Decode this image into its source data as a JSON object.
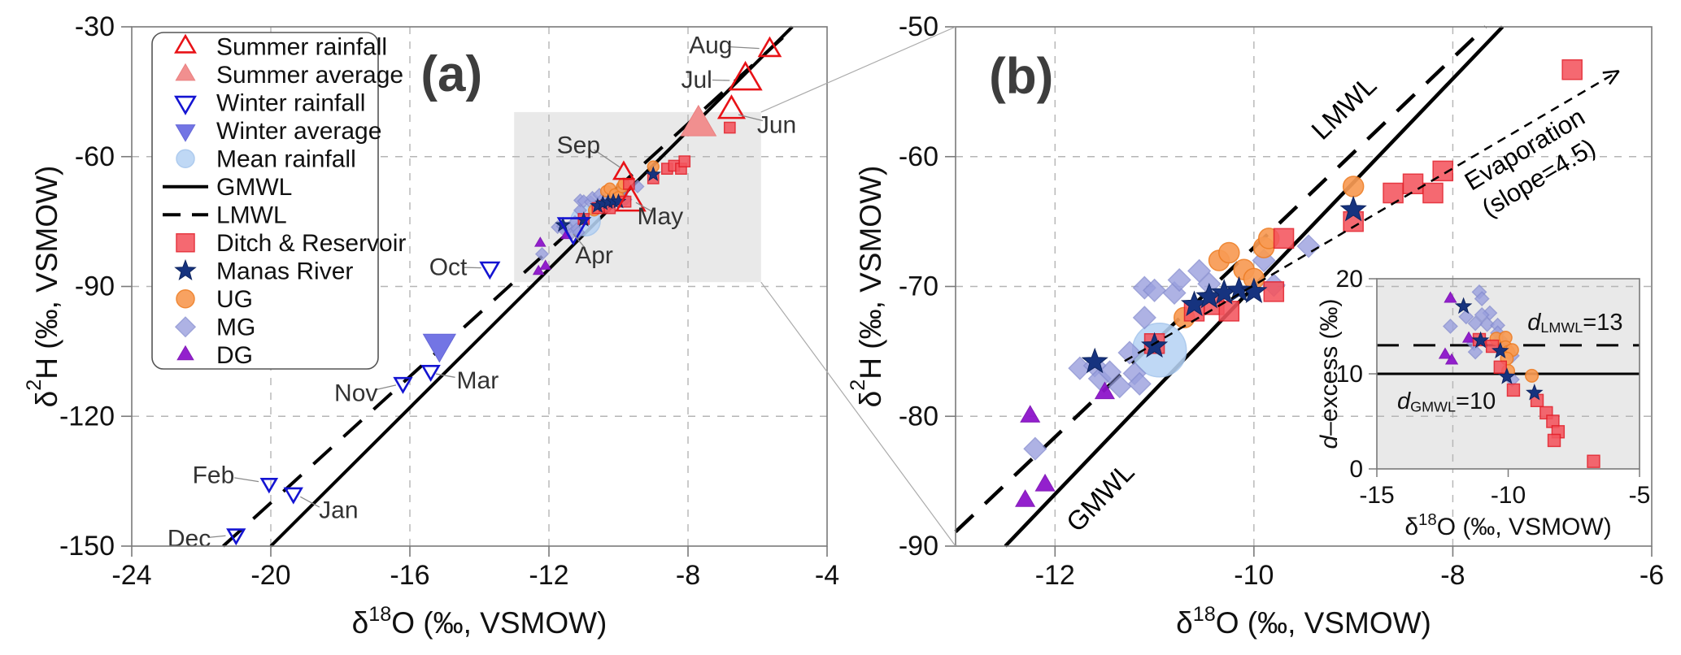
{
  "figure": {
    "description": "Dual-panel stable isotope scatter plot with inset d-excess plot"
  },
  "legend": {
    "items": [
      {
        "label": "Summer rainfall",
        "key": "summer_rainfall"
      },
      {
        "label": "Summer average",
        "key": "summer_average"
      },
      {
        "label": "Winter rainfall",
        "key": "winter_rainfall"
      },
      {
        "label": "Winter average",
        "key": "winter_average"
      },
      {
        "label": "Mean rainfall",
        "key": "mean_rainfall"
      },
      {
        "label": "GMWL",
        "key": "line_solid"
      },
      {
        "label": "LMWL",
        "key": "line_dashed"
      },
      {
        "label": "Ditch & Reservoir",
        "key": "ditch_reservoir"
      },
      {
        "label": "Manas River",
        "key": "manas_river"
      },
      {
        "label": "UG",
        "key": "ug"
      },
      {
        "label": "MG",
        "key": "mg"
      },
      {
        "label": "DG",
        "key": "dg"
      }
    ]
  },
  "chart_data": {
    "type": "scatter",
    "markers": {
      "summer_rainfall": {
        "shape": "triangle-up",
        "fill": "none",
        "stroke": "#e81217",
        "sw": 3,
        "r": 14,
        "opacity": 1
      },
      "summer_average": {
        "shape": "triangle-up",
        "fill": "#f18f8f",
        "stroke": "#ea8181",
        "sw": 1,
        "r": 24,
        "opacity": 1
      },
      "winter_rainfall": {
        "shape": "triangle-down",
        "fill": "none",
        "stroke": "#1414d2",
        "sw": 3,
        "r": 14,
        "opacity": 1
      },
      "winter_average": {
        "shape": "triangle-down",
        "fill": "#7375e4",
        "stroke": "#6567d8",
        "sw": 1,
        "r": 22,
        "opacity": 1
      },
      "mean_rainfall": {
        "shape": "circle",
        "fill": "#b7d3f4",
        "stroke": "#a3c4ec",
        "sw": 1.5,
        "r": 33,
        "opacity": 0.88
      },
      "ditch_reservoir": {
        "shape": "square",
        "fill": "#f4555e",
        "stroke": "#e31e28",
        "sw": 1.5,
        "r": 12,
        "opacity": 0.88
      },
      "manas_river": {
        "shape": "star",
        "fill": "#16337f",
        "stroke": "#0f2560",
        "sw": 1,
        "r": 16,
        "opacity": 1
      },
      "ug": {
        "shape": "circle",
        "fill": "#f89b54",
        "stroke": "#ee7e26",
        "sw": 1.5,
        "r": 12.5,
        "opacity": 0.92
      },
      "mg": {
        "shape": "diamond",
        "fill": "#9aa0de",
        "stroke": "#868dd0",
        "sw": 1.5,
        "r": 13.5,
        "opacity": 0.8
      },
      "dg": {
        "shape": "triangle-up",
        "fill": "#8e15cb",
        "stroke": "#7d12b4",
        "sw": 1,
        "r": 13,
        "opacity": 0.95
      },
      "line_solid": {
        "shape": "line",
        "stroke": "#000000",
        "sw": 4,
        "dash": null
      },
      "line_dashed": {
        "shape": "line",
        "stroke": "#000000",
        "sw": 4,
        "dash": "22,14"
      }
    },
    "water_series": {
      "mean_rainfall": [
        [
          -10.95,
          -74.9
        ]
      ],
      "mg": [
        [
          -12.2,
          -82.5
        ],
        [
          -11.75,
          -76.3
        ],
        [
          -11.6,
          -76.1
        ],
        [
          -11.55,
          -77.1
        ],
        [
          -11.45,
          -76.6
        ],
        [
          -11.35,
          -77.7
        ],
        [
          -11.25,
          -75.1
        ],
        [
          -11.2,
          -76.7
        ],
        [
          -11.15,
          -77.5
        ],
        [
          -11.1,
          -72.4
        ],
        [
          -11.1,
          -70.1
        ],
        [
          -11.0,
          -70.3
        ],
        [
          -10.8,
          -70.5
        ],
        [
          -10.75,
          -69.5
        ],
        [
          -10.55,
          -68.8
        ],
        [
          -10.45,
          -69.8
        ],
        [
          -9.9,
          -68.0
        ],
        [
          -9.8,
          -69.9
        ],
        [
          -9.45,
          -66.9
        ]
      ],
      "dg": [
        [
          -12.3,
          -86.5
        ],
        [
          -12.1,
          -85.3
        ],
        [
          -12.25,
          -80.0
        ],
        [
          -11.5,
          -78.2
        ]
      ],
      "ug": [
        [
          -10.7,
          -72.4
        ],
        [
          -10.35,
          -68.0
        ],
        [
          -10.25,
          -67.4
        ],
        [
          -10.1,
          -68.7
        ],
        [
          -10.0,
          -69.4
        ],
        [
          -9.9,
          -67.0
        ],
        [
          -9.85,
          -66.3
        ],
        [
          -9.0,
          -62.3
        ]
      ],
      "ditch_reservoir": [
        [
          -11.0,
          -74.4
        ],
        [
          -10.6,
          -71.9
        ],
        [
          -10.4,
          -71.4
        ],
        [
          -10.25,
          -71.9
        ],
        [
          -9.8,
          -70.4
        ],
        [
          -9.7,
          -66.3
        ],
        [
          -9.0,
          -65.0
        ],
        [
          -8.6,
          -62.8
        ],
        [
          -8.4,
          -62.1
        ],
        [
          -8.2,
          -62.8
        ],
        [
          -8.1,
          -61.1
        ],
        [
          -6.8,
          -53.3
        ]
      ],
      "manas_river": [
        [
          -11.6,
          -75.8
        ],
        [
          -11.0,
          -74.6
        ],
        [
          -10.6,
          -71.4
        ],
        [
          -10.45,
          -70.8
        ],
        [
          -10.3,
          -70.5
        ],
        [
          -10.15,
          -70.3
        ],
        [
          -10.0,
          -70.4
        ],
        [
          -9.0,
          -64.1
        ]
      ]
    },
    "rainfall": {
      "summer_rainfall": [
        {
          "x": -9.65,
          "y": -70.5,
          "r": 19
        },
        {
          "x": -9.85,
          "y": -63.8,
          "r": 13
        },
        {
          "x": -6.75,
          "y": -49.3,
          "r": 17
        },
        {
          "x": -6.35,
          "y": -42.3,
          "r": 21
        },
        {
          "x": -5.65,
          "y": -35.3,
          "r": 14
        }
      ],
      "winter_rainfall": [
        {
          "x": -13.7,
          "y": -85.7,
          "r": 12
        },
        {
          "x": -16.2,
          "y": -112.3,
          "r": 11
        },
        {
          "x": -21.0,
          "y": -147.3,
          "r": 11
        },
        {
          "x": -19.35,
          "y": -137.8,
          "r": 11
        },
        {
          "x": -20.05,
          "y": -135.5,
          "r": 10
        },
        {
          "x": -15.4,
          "y": -109.5,
          "r": 11
        },
        {
          "x": -11.3,
          "y": -76.3,
          "r": 20
        }
      ],
      "summer_average": [
        {
          "x": -7.7,
          "y": -52.7,
          "r": 24
        }
      ],
      "winter_average": [
        {
          "x": -15.15,
          "y": -103.3,
          "r": 22
        }
      ]
    },
    "panels": [
      {
        "id": "a",
        "title": {
          "label": "(a)",
          "x": -14.8,
          "y": -40.9
        },
        "xlim": [
          -24,
          -4
        ],
        "ylim": [
          -150,
          -30
        ],
        "xticks": [
          -24,
          -20,
          -16,
          -12,
          -8,
          -4
        ],
        "yticks": [
          -150,
          -120,
          -90,
          -60,
          -30
        ],
        "xlabel": "δ¹⁸O (‰, VSMOW)",
        "ylabel": "δ²H (‰, VSMOW)",
        "xlabel_parts": [
          {
            "t": "δ",
            "m": 0
          },
          {
            "t": "18",
            "m": 1
          },
          {
            "t": "O (‰, VSMOW)",
            "m": 0
          }
        ],
        "ylabel_parts": [
          {
            "t": "δ",
            "m": 0
          },
          {
            "t": "2",
            "m": 1
          },
          {
            "t": "H (‰, VSMOW)",
            "m": 0
          }
        ],
        "marker_scale": 0.55,
        "show_months": true,
        "zoom_box": {
          "x1": -13.0,
          "x2": -5.9,
          "y1": -89.0,
          "y2": -49.7
        },
        "lines": [
          {
            "name": "GMWL",
            "slope": 8,
            "intercept": 10,
            "dash": null,
            "width": 4
          },
          {
            "name": "LMWL",
            "slope": 7.3,
            "intercept": 6,
            "dash": "30,20",
            "width": 4
          }
        ],
        "annotations": [
          {
            "text": "Aug",
            "tx": -7.35,
            "ty": -34.2,
            "line": [
              -6.85,
              -34.6,
              -5.95,
              -35.0
            ]
          },
          {
            "text": "Jul",
            "tx": -7.75,
            "ty": -42.2,
            "line": [
              -7.3,
              -42.3,
              -6.8,
              -42.4
            ]
          },
          {
            "text": "Jun",
            "tx": -5.45,
            "ty": -52.6,
            "line": [
              -5.85,
              -51.7,
              -6.55,
              -50.3
            ]
          },
          {
            "text": "Sep",
            "tx": -11.15,
            "ty": -57.3,
            "line": [
              -10.7,
              -58.4,
              -9.95,
              -62.5
            ]
          },
          {
            "text": "May",
            "tx": -8.8,
            "ty": -73.8,
            "line": [
              -9.05,
              -72.6,
              -9.5,
              -70.6
            ]
          },
          {
            "text": "Apr",
            "tx": -10.7,
            "ty": -82.8,
            "line": [
              -10.95,
              -81.2,
              -11.3,
              -77.9
            ]
          },
          {
            "text": "Oct",
            "tx": -14.9,
            "ty": -85.5,
            "line": [
              -14.45,
              -85.6,
              -13.95,
              -85.7
            ]
          },
          {
            "text": "Nov",
            "tx": -17.55,
            "ty": -114.6,
            "line": [
              -17.0,
              -113.9,
              -16.4,
              -112.8
            ]
          },
          {
            "text": "Mar",
            "tx": -14.05,
            "ty": -111.7,
            "line": [
              -14.7,
              -111.0,
              -15.25,
              -110.2
            ]
          },
          {
            "text": "Dec",
            "tx": -22.35,
            "ty": -148.2,
            "line": [
              -21.8,
              -148.0,
              -21.3,
              -147.6
            ]
          },
          {
            "text": "Feb",
            "tx": -21.65,
            "ty": -133.6,
            "line": [
              -21.05,
              -134.2,
              -20.35,
              -135.1
            ]
          },
          {
            "text": "Jan",
            "tx": -18.05,
            "ty": -141.6,
            "line": [
              -18.6,
              -141.0,
              -19.15,
              -138.6
            ]
          }
        ]
      },
      {
        "id": "b",
        "title": {
          "label": "(b)",
          "x": -12.34,
          "y": -53.8
        },
        "xlim": [
          -13,
          -6
        ],
        "ylim": [
          -90,
          -50
        ],
        "xticks": [
          -12,
          -10,
          -8,
          -6
        ],
        "yticks": [
          -90,
          -80,
          -70,
          -60,
          -50
        ],
        "xlabel": "δ¹⁸O (‰, VSMOW)",
        "ylabel": "δ²H (‰, VSMOW)",
        "xlabel_parts": [
          {
            "t": "δ",
            "m": 0
          },
          {
            "t": "18",
            "m": 1
          },
          {
            "t": "O (‰, VSMOW)",
            "m": 0
          }
        ],
        "ylabel_parts": [
          {
            "t": "δ",
            "m": 0
          },
          {
            "t": "2",
            "m": 1
          },
          {
            "t": "H (‰, VSMOW)",
            "m": 0
          }
        ],
        "marker_scale": 1,
        "show_months": false,
        "lines": [
          {
            "name": "GMWL",
            "slope": 8,
            "intercept": 10,
            "dash": null,
            "width": 4.5
          },
          {
            "name": "LMWL",
            "slope": 7.3,
            "intercept": 6,
            "dash": "30,20",
            "width": 4.5
          }
        ],
        "evap_line": {
          "x1": -11.3,
          "y1": -75.75,
          "x2": -6.33,
          "y2": -53.4,
          "dash": "11,8",
          "width": 2.5
        },
        "rot_labels": [
          {
            "text": "LMWL",
            "x": -9.1,
            "y": -56.2,
            "rot": -44,
            "size": 33
          },
          {
            "text": "GMWL",
            "x": -11.55,
            "y": -86.2,
            "rot": -46,
            "size": 33
          },
          {
            "text": "Evaporation",
            "x": -7.28,
            "y": -59.4,
            "rot": -31,
            "size": 31
          },
          {
            "text": "(slope=4.5)",
            "x": -7.14,
            "y": -61.6,
            "rot": -31,
            "size": 31
          }
        ]
      }
    ],
    "inset": {
      "xlim": [
        -15,
        -5
      ],
      "ylim": [
        0,
        20
      ],
      "xticks": [
        -15,
        -10,
        -5
      ],
      "yticks": [
        0,
        10,
        20
      ],
      "xlabel": "δ¹⁸O (‰, VSMOW)",
      "ylabel": "d–excess (‰)",
      "xlabel_parts": [
        {
          "t": "δ",
          "m": 0
        },
        {
          "t": "18",
          "m": 1
        },
        {
          "t": "O (‰, VSMOW)",
          "m": 0
        }
      ],
      "ylabel_parts": [
        {
          "t": "d",
          "m": 3
        },
        {
          "t": "–excess (‰)",
          "m": 0
        }
      ],
      "bg": "#e9e9e9",
      "marker_scale": 0.62,
      "hlines": [
        {
          "y": 13,
          "dashed": true,
          "label_parts": [
            {
              "t": "d",
              "m": 3
            },
            {
              "t": "LMWL",
              "m": 2
            },
            {
              "t": "=13",
              "m": 0
            }
          ],
          "lx": -7.45,
          "ly": 15.4
        },
        {
          "y": 10,
          "dashed": false,
          "label_parts": [
            {
              "t": "d",
              "m": 3
            },
            {
              "t": "GMWL",
              "m": 2
            },
            {
              "t": "=10",
              "m": 0
            }
          ],
          "lx": -12.35,
          "ly": 7.1
        }
      ],
      "series": {
        "mg": [
          [
            -11.1,
            18.6
          ],
          [
            -11.0,
            17.9
          ],
          [
            -10.7,
            16.4
          ],
          [
            -11.0,
            16.2
          ],
          [
            -11.6,
            16.0
          ],
          [
            -11.25,
            15.3
          ],
          [
            -10.8,
            15.2
          ],
          [
            -10.4,
            15.1
          ],
          [
            -12.2,
            15.0
          ],
          [
            -10.4,
            14.3
          ],
          [
            -10.3,
            13.6
          ],
          [
            -10.2,
            12.9
          ],
          [
            -11.3,
            13.2
          ],
          [
            -11.25,
            12.3
          ],
          [
            -9.85,
            11.9
          ],
          [
            -9.85,
            9.4
          ]
        ],
        "dg": [
          [
            -12.2,
            17.9
          ],
          [
            -12.4,
            12.0
          ],
          [
            -12.15,
            11.4
          ],
          [
            -11.5,
            13.7
          ]
        ],
        "manas_river": [
          [
            -11.7,
            17.1
          ],
          [
            -11.05,
            13.5
          ],
          [
            -10.3,
            12.4
          ],
          [
            -10.05,
            9.7
          ],
          [
            -9.0,
            8.0
          ]
        ],
        "ug": [
          [
            -10.45,
            13.7
          ],
          [
            -10.1,
            13.8
          ],
          [
            -10.1,
            12.8
          ],
          [
            -10.0,
            12.3
          ],
          [
            -9.85,
            12.5
          ],
          [
            -10.05,
            11.6
          ],
          [
            -10.0,
            10.3
          ],
          [
            -9.1,
            9.8
          ]
        ],
        "ditch_reservoir": [
          [
            -11.1,
            13.6
          ],
          [
            -10.6,
            12.9
          ],
          [
            -10.3,
            10.7
          ],
          [
            -9.8,
            8.3
          ],
          [
            -8.9,
            7.2
          ],
          [
            -8.55,
            5.9
          ],
          [
            -8.3,
            5.0
          ],
          [
            -8.1,
            3.9
          ],
          [
            -8.25,
            3.0
          ],
          [
            -6.75,
            0.8
          ]
        ]
      }
    },
    "style": {
      "grid_color": "#b5b5b5",
      "spine_color": "#7a7a7a",
      "tick_label_color": "#111111",
      "annotation_color": "#333333",
      "leader_color": "#8a8a8a",
      "zoom_box_fill": "#e9e9e9",
      "connector_color": "#aaaaaa"
    }
  }
}
